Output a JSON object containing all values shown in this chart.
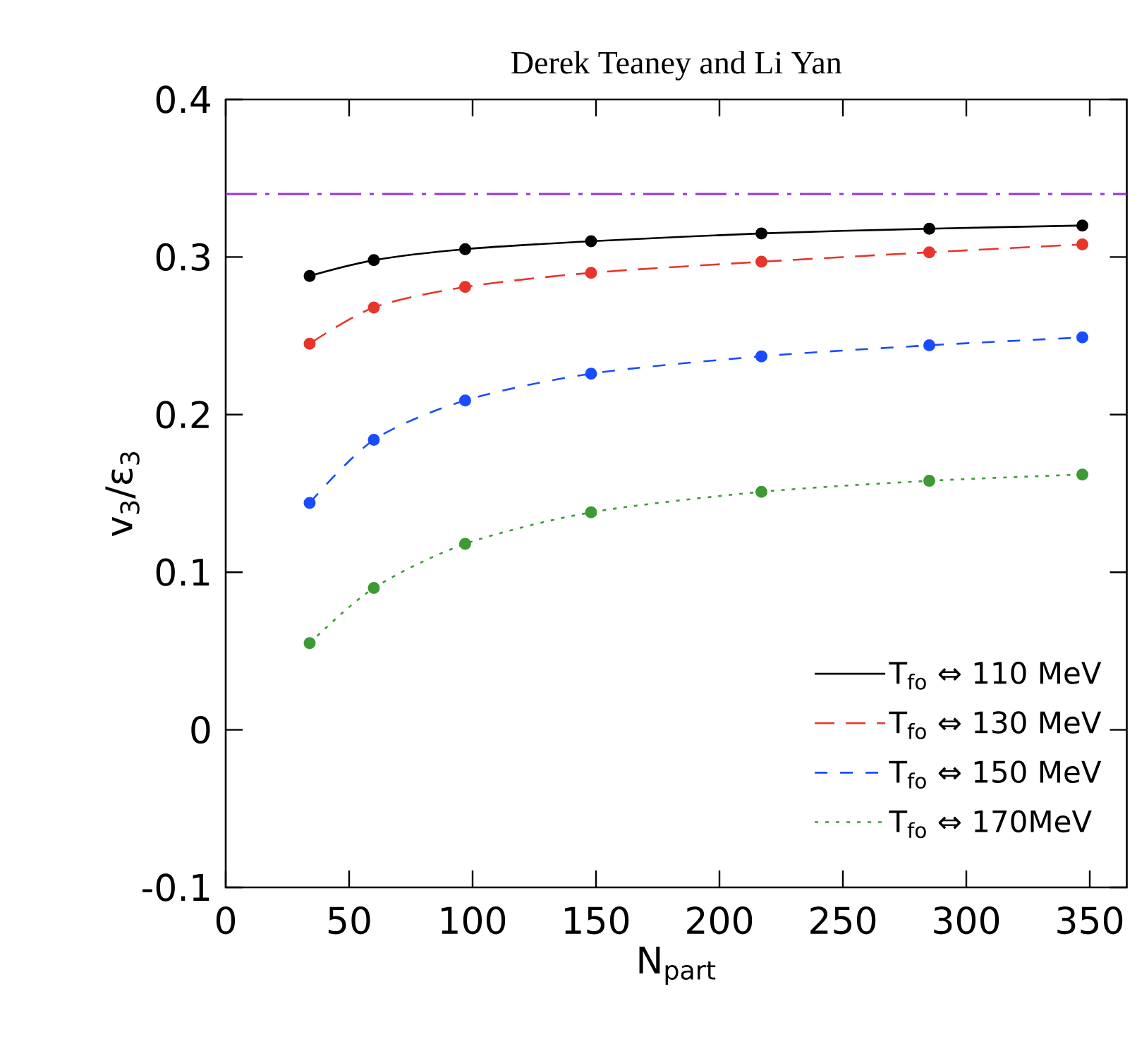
{
  "chart_data": {
    "type": "line",
    "title": "Derek Teaney and Li Yan",
    "xlabel": "N$_{part}$",
    "ylabel": "v$_{3}$/ε$_{3}$",
    "x": [
      34,
      60,
      97,
      148,
      217,
      285,
      347
    ],
    "series": [
      {
        "name": "T$_{fo}$ ⇔ 110 MeV",
        "color": "#000000",
        "line_style": "solid",
        "values": [
          0.288,
          0.298,
          0.305,
          0.31,
          0.315,
          0.318,
          0.32
        ]
      },
      {
        "name": "T$_{fo}$ ⇔ 130 MeV",
        "color": "#e8352a",
        "line_style": "dashed",
        "values": [
          0.245,
          0.268,
          0.281,
          0.29,
          0.297,
          0.303,
          0.308
        ]
      },
      {
        "name": "T$_{fo}$ ⇔ 150 MeV",
        "color": "#1a4cff",
        "line_style": "dashed",
        "values": [
          0.144,
          0.184,
          0.209,
          0.226,
          0.237,
          0.244,
          0.249
        ]
      },
      {
        "name": "T$_{fo}$ ⇔ 170MeV",
        "color": "#3d9a35",
        "line_style": "dotted",
        "values": [
          0.055,
          0.09,
          0.118,
          0.138,
          0.151,
          0.158,
          0.162
        ]
      }
    ],
    "ref_lines": [
      {
        "axis": "y",
        "value": 0.34,
        "color": "#9933dd",
        "line_style": "dashdot"
      }
    ],
    "xlim": [
      0,
      365
    ],
    "ylim": [
      -0.1,
      0.4
    ],
    "xticks": [
      0,
      50,
      100,
      150,
      200,
      250,
      300,
      350
    ],
    "yticks": [
      -0.1,
      0,
      0.1,
      0.2,
      0.3,
      0.4
    ],
    "marker": "circle",
    "grid": false,
    "legend": "bottom right"
  }
}
